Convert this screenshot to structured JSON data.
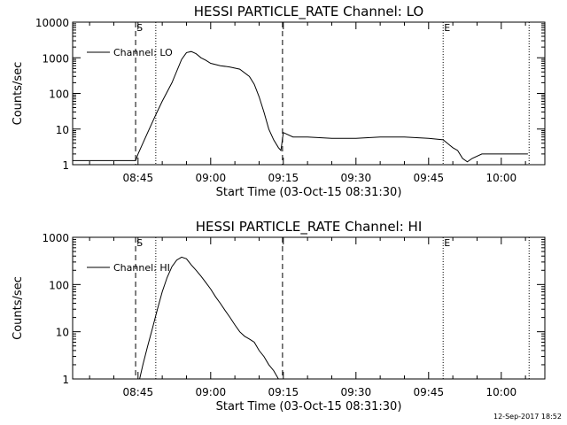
{
  "chart_data": [
    {
      "type": "line",
      "title": "HESSI PARTICLE_RATE Channel: LO",
      "xlabel": "Start Time (03-Oct-15 08:31:30)",
      "ylabel": "Counts/sec",
      "scale_y": "log",
      "ylim": [
        1,
        10000
      ],
      "xlim": [
        "08:31:30",
        "10:09:00"
      ],
      "xticks": [
        "08:45",
        "09:00",
        "09:15",
        "09:30",
        "09:45",
        "10:00"
      ],
      "yticks": [
        "1",
        "10",
        "100",
        "1000",
        "10000"
      ],
      "markers": [
        {
          "label": "S",
          "time": "08:44:30",
          "style": "dashed"
        },
        {
          "label": "",
          "time": "08:48:40",
          "style": "dotted"
        },
        {
          "label": "",
          "time": "09:14:50",
          "style": "dashed"
        },
        {
          "label": "E",
          "time": "09:48:00",
          "style": "dotted"
        },
        {
          "label": "",
          "time": "10:05:45",
          "style": "dotted"
        }
      ],
      "legend": {
        "position": "top-left",
        "entries": [
          "Channel: LO"
        ]
      },
      "grid": false,
      "series": [
        {
          "name": "Channel: LO",
          "x": [
            "08:31:30",
            "08:35",
            "08:40",
            "08:44:30",
            "08:45",
            "08:47",
            "08:48:40",
            "08:50",
            "08:52",
            "08:54",
            "08:55",
            "08:56",
            "08:57",
            "08:58",
            "08:59",
            "09:00",
            "09:02",
            "09:04",
            "09:06",
            "09:08",
            "09:09",
            "09:10",
            "09:11",
            "09:12",
            "09:13",
            "09:14",
            "09:14:30",
            "09:15",
            "09:17",
            "09:20",
            "09:25",
            "09:30",
            "09:35",
            "09:40",
            "09:45",
            "09:48",
            "09:50",
            "09:51",
            "09:52",
            "09:53",
            "09:54",
            "09:56",
            "09:58",
            "10:00",
            "10:02",
            "10:03",
            "10:05:30"
          ],
          "y": [
            1.3,
            1.3,
            1.3,
            1.3,
            2,
            8,
            25,
            60,
            200,
            900,
            1400,
            1500,
            1300,
            1000,
            850,
            700,
            600,
            550,
            480,
            300,
            180,
            80,
            30,
            10,
            5,
            3,
            2.5,
            8,
            6,
            6,
            5.5,
            5.5,
            6,
            6,
            5.5,
            5,
            3,
            2.5,
            1.5,
            1.2,
            1.5,
            2,
            2,
            2,
            2,
            2,
            2
          ]
        }
      ]
    },
    {
      "type": "line",
      "title": "HESSI PARTICLE_RATE Channel: HI",
      "xlabel": "Start Time (03-Oct-15 08:31:30)",
      "ylabel": "Counts/sec",
      "scale_y": "log",
      "ylim": [
        1,
        1000
      ],
      "xlim": [
        "08:31:30",
        "10:09:00"
      ],
      "xticks": [
        "08:45",
        "09:00",
        "09:15",
        "09:30",
        "09:45",
        "10:00"
      ],
      "yticks": [
        "1",
        "10",
        "100",
        "1000"
      ],
      "markers": [
        {
          "label": "S",
          "time": "08:44:30",
          "style": "dashed"
        },
        {
          "label": "",
          "time": "08:48:40",
          "style": "dotted"
        },
        {
          "label": "",
          "time": "09:14:50",
          "style": "dashed"
        },
        {
          "label": "E",
          "time": "09:48:00",
          "style": "dotted"
        },
        {
          "label": "",
          "time": "10:05:45",
          "style": "dotted"
        }
      ],
      "legend": {
        "position": "top-left",
        "entries": [
          "Channel: HI"
        ]
      },
      "grid": false,
      "series": [
        {
          "name": "Channel: HI",
          "x": [
            "08:45:20",
            "08:46",
            "08:47",
            "08:48",
            "08:49",
            "08:50",
            "08:51",
            "08:52",
            "08:53",
            "08:54",
            "08:55",
            "08:56",
            "08:57",
            "08:58",
            "08:59",
            "09:00",
            "09:01",
            "09:02",
            "09:03",
            "09:04",
            "09:05",
            "09:06",
            "09:07",
            "09:08",
            "09:09",
            "09:10",
            "09:11",
            "09:12",
            "09:13",
            "09:14"
          ],
          "y": [
            1,
            2,
            5,
            12,
            30,
            70,
            140,
            240,
            330,
            380,
            350,
            260,
            200,
            150,
            110,
            80,
            55,
            40,
            28,
            20,
            14,
            10,
            8,
            7,
            6,
            4,
            3,
            2,
            1.5,
            1
          ]
        }
      ]
    }
  ],
  "footer": {
    "timestamp": "12-Sep-2017 18:52"
  }
}
